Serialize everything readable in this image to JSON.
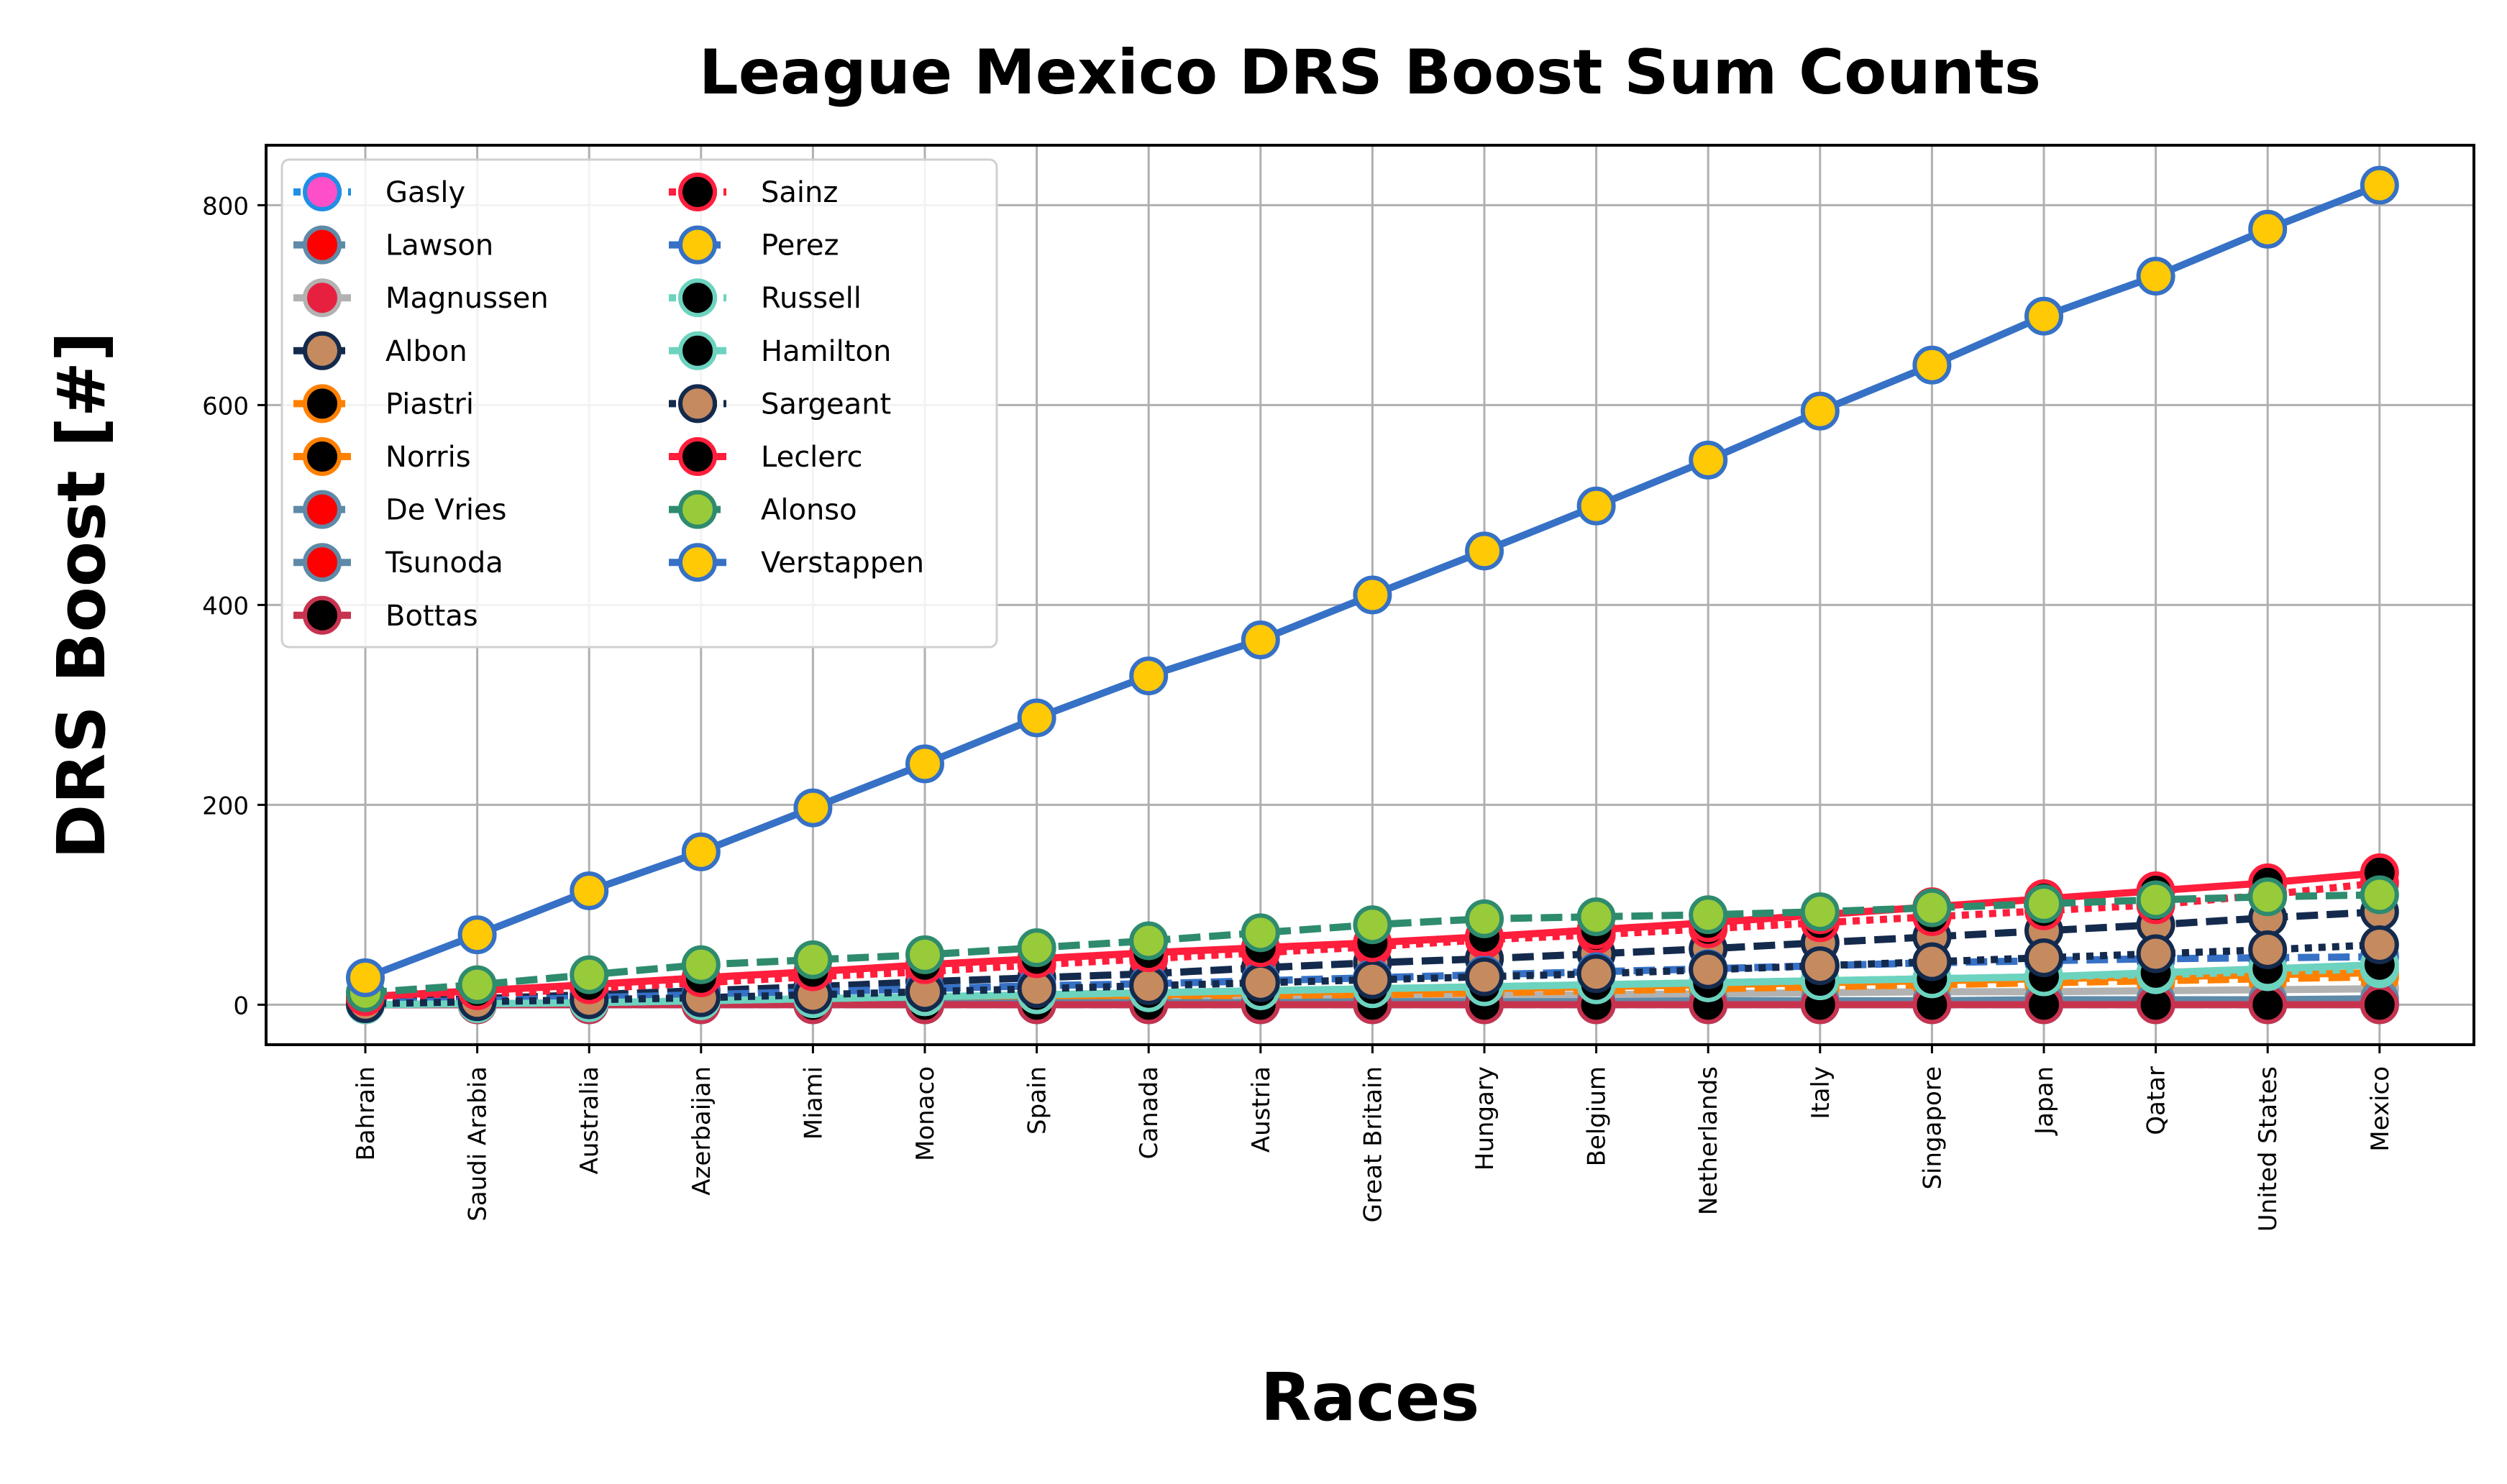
{
  "chart_data": {
    "type": "line",
    "title": "League Mexico DRS Boost Sum Counts",
    "xlabel": "Races",
    "ylabel": "DRS Boost [#]",
    "categories": [
      "Bahrain",
      "Saudi Arabia",
      "Australia",
      "Azerbaijan",
      "Miami",
      "Monaco",
      "Spain",
      "Canada",
      "Austria",
      "Great Britain",
      "Hungary",
      "Belgium",
      "Netherlands",
      "Italy",
      "Singapore",
      "Japan",
      "Qatar",
      "United States",
      "Mexico"
    ],
    "ylim": [
      -40,
      860
    ],
    "yticks": [
      0,
      200,
      400,
      600,
      800
    ],
    "grid": true,
    "legend": {
      "placement": "top-left",
      "columns": 2
    },
    "series": [
      {
        "name": "Gasly",
        "line_color": "#1f8fe6",
        "dash": "dotted",
        "marker_fill": "#ff4fc8",
        "marker_edge": "#1f8fe6",
        "values": [
          0,
          0,
          0,
          0,
          0,
          0,
          0,
          0,
          0,
          0,
          0,
          0,
          0,
          0,
          0,
          0,
          0,
          0,
          0
        ]
      },
      {
        "name": "Lawson",
        "line_color": "#5e8aa8",
        "dash": "dashed",
        "marker_fill": "#ff0000",
        "marker_edge": "#5e8aa8",
        "values": [
          0,
          0,
          0,
          0,
          0,
          0,
          0,
          0,
          0,
          0,
          0,
          0,
          2,
          2,
          2,
          2,
          2,
          2,
          2
        ]
      },
      {
        "name": "Magnussen",
        "line_color": "#b2b2b2",
        "dash": "solid",
        "marker_fill": "#e8203f",
        "marker_edge": "#b2b2b2",
        "values": [
          0,
          1,
          2,
          3,
          4,
          5,
          5,
          6,
          7,
          8,
          9,
          10,
          11,
          12,
          13,
          13,
          14,
          15,
          16
        ]
      },
      {
        "name": "Albon",
        "line_color": "#142a4d",
        "dash": "dashed",
        "marker_fill": "#c68a5f",
        "marker_edge": "#142a4d",
        "values": [
          3,
          6,
          10,
          14,
          18,
          23,
          27,
          31,
          37,
          42,
          46,
          51,
          56,
          62,
          68,
          74,
          80,
          87,
          93
        ]
      },
      {
        "name": "Piastri",
        "line_color": "#ff8000",
        "dash": "dashed",
        "marker_fill": "#000000",
        "marker_edge": "#ff8000",
        "values": [
          0,
          0,
          1,
          2,
          3,
          4,
          5,
          6,
          8,
          10,
          12,
          14,
          16,
          18,
          20,
          22,
          24,
          26,
          28
        ]
      },
      {
        "name": "Norris",
        "line_color": "#ff8000",
        "dash": "solid",
        "marker_fill": "#000000",
        "marker_edge": "#ff8000",
        "values": [
          0,
          1,
          2,
          3,
          4,
          6,
          8,
          10,
          12,
          14,
          16,
          18,
          20,
          22,
          24,
          26,
          28,
          30,
          32
        ]
      },
      {
        "name": "De Vries",
        "line_color": "#5e8aa8",
        "dash": "dashed",
        "marker_fill": "#ff0000",
        "marker_edge": "#5e8aa8",
        "values": [
          0,
          0,
          0,
          0,
          0,
          0,
          0,
          0,
          0,
          0,
          0,
          0,
          0,
          0,
          0,
          0,
          0,
          0,
          0
        ]
      },
      {
        "name": "Tsunoda",
        "line_color": "#5e8aa8",
        "dash": "solid",
        "marker_fill": "#ff0000",
        "marker_edge": "#5e8aa8",
        "values": [
          0,
          0,
          0,
          1,
          1,
          1,
          2,
          2,
          2,
          3,
          3,
          3,
          4,
          4,
          4,
          5,
          5,
          5,
          6
        ]
      },
      {
        "name": "Bottas",
        "line_color": "#c7334f",
        "dash": "solid",
        "marker_fill": "#000000",
        "marker_edge": "#c7334f",
        "values": [
          0,
          0,
          0,
          0,
          0,
          0,
          0,
          0,
          0,
          0,
          0,
          0,
          0,
          0,
          0,
          0,
          0,
          0,
          0
        ]
      },
      {
        "name": "Sainz",
        "line_color": "#ff1e3c",
        "dash": "dotted",
        "marker_fill": "#000000",
        "marker_edge": "#ff1e3c",
        "values": [
          5,
          10,
          16,
          22,
          28,
          33,
          40,
          46,
          52,
          58,
          65,
          70,
          76,
          82,
          88,
          94,
          100,
          110,
          122
        ]
      },
      {
        "name": "Perez",
        "line_color": "#3671c6",
        "dash": "dashed",
        "marker_fill": "#ffc906",
        "marker_edge": "#3671c6",
        "values": [
          2,
          4,
          7,
          10,
          13,
          16,
          19,
          21,
          24,
          27,
          30,
          33,
          36,
          39,
          42,
          44,
          46,
          47,
          48
        ]
      },
      {
        "name": "Russell",
        "line_color": "#6cd3bf",
        "dash": "dotted",
        "marker_fill": "#000000",
        "marker_edge": "#6cd3bf",
        "values": [
          0,
          1,
          2,
          4,
          6,
          8,
          10,
          12,
          14,
          16,
          18,
          20,
          22,
          24,
          26,
          28,
          30,
          33,
          36
        ]
      },
      {
        "name": "Hamilton",
        "line_color": "#6cd3bf",
        "dash": "solid",
        "marker_fill": "#000000",
        "marker_edge": "#6cd3bf",
        "values": [
          0,
          1,
          2,
          4,
          6,
          8,
          10,
          12,
          14,
          16,
          18,
          20,
          22,
          24,
          26,
          28,
          32,
          36,
          40
        ]
      },
      {
        "name": "Sargeant",
        "line_color": "#142a4d",
        "dash": "dotted",
        "marker_fill": "#c68a5f",
        "marker_edge": "#142a4d",
        "values": [
          1,
          3,
          5,
          7,
          10,
          13,
          16,
          19,
          22,
          25,
          28,
          31,
          35,
          39,
          43,
          47,
          51,
          55,
          60
        ]
      },
      {
        "name": "Leclerc",
        "line_color": "#ff1e3c",
        "dash": "solid",
        "marker_fill": "#000000",
        "marker_edge": "#ff1e3c",
        "values": [
          8,
          14,
          20,
          27,
          33,
          40,
          46,
          52,
          57,
          62,
          68,
          75,
          82,
          90,
          98,
          106,
          114,
          122,
          132
        ]
      },
      {
        "name": "Alonso",
        "line_color": "#2e8b6e",
        "dash": "dashed",
        "marker_fill": "#98cb3a",
        "marker_edge": "#2e8b6e",
        "values": [
          12,
          20,
          30,
          40,
          45,
          50,
          57,
          64,
          72,
          80,
          86,
          88,
          90,
          93,
          97,
          101,
          105,
          108,
          110
        ]
      },
      {
        "name": "Verstappen",
        "line_color": "#3671c6",
        "dash": "solid",
        "marker_fill": "#ffc906",
        "marker_edge": "#3671c6",
        "values": [
          27,
          70,
          114,
          153,
          197,
          241,
          287,
          329,
          365,
          410,
          454,
          499,
          545,
          594,
          640,
          689,
          729,
          776,
          820
        ]
      }
    ]
  }
}
